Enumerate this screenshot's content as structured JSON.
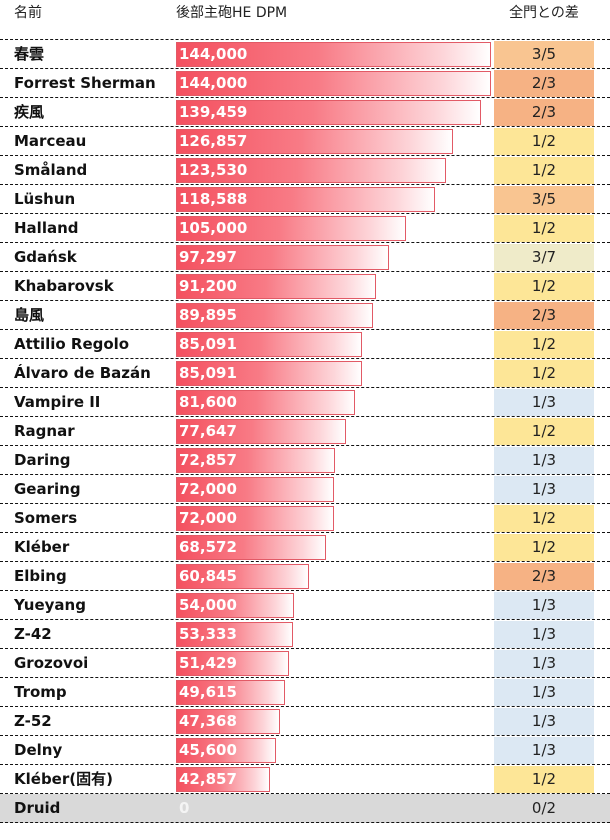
{
  "headers": {
    "name": "名前",
    "dpm": "後部主砲HE DPM",
    "diff": "全門との差"
  },
  "colors": {
    "diff_3_5": "#f9c591",
    "diff_2_3": "#f6b284",
    "diff_1_2": "#fde697",
    "diff_3_7": "#efebc9",
    "diff_1_3": "#dce8f3",
    "diff_0_2": "#d9d9d9"
  },
  "chart_data": {
    "type": "bar",
    "title": "後部主砲HE DPM",
    "xlim": [
      0,
      144000
    ],
    "categories": [
      "春雲",
      "Forrest Sherman",
      "疾風",
      "Marceau",
      "Småland",
      "Lüshun",
      "Halland",
      "Gdańsk",
      "Khabarovsk",
      "島風",
      "Attilio Regolo",
      "Álvaro de Bazán",
      "Vampire II",
      "Ragnar",
      "Daring",
      "Gearing",
      "Somers",
      "Kléber",
      "Elbing",
      "Yueyang",
      "Z-42",
      "Grozovoi",
      "Tromp",
      "Z-52",
      "Delny",
      "Kléber(固有)",
      "Druid"
    ],
    "values": [
      144000,
      144000,
      139459,
      126857,
      123530,
      118588,
      105000,
      97297,
      91200,
      89895,
      85091,
      85091,
      81600,
      77647,
      72857,
      72000,
      72000,
      68572,
      60845,
      54000,
      53333,
      51429,
      49615,
      47368,
      45600,
      42857,
      0
    ],
    "labels": [
      "144,000",
      "144,000",
      "139,459",
      "126,857",
      "123,530",
      "118,588",
      "105,000",
      "97,297",
      "91,200",
      "89,895",
      "85,091",
      "85,091",
      "81,600",
      "77,647",
      "72,857",
      "72,000",
      "72,000",
      "68,572",
      "60,845",
      "54,000",
      "53,333",
      "51,429",
      "49,615",
      "47,368",
      "45,600",
      "42,857",
      "0"
    ],
    "diff": [
      "3/5",
      "2/3",
      "2/3",
      "1/2",
      "1/2",
      "3/5",
      "1/2",
      "3/7",
      "1/2",
      "2/3",
      "1/2",
      "1/2",
      "1/3",
      "1/2",
      "1/3",
      "1/3",
      "1/2",
      "1/2",
      "2/3",
      "1/3",
      "1/3",
      "1/3",
      "1/3",
      "1/3",
      "1/3",
      "1/2",
      "0/2"
    ]
  }
}
